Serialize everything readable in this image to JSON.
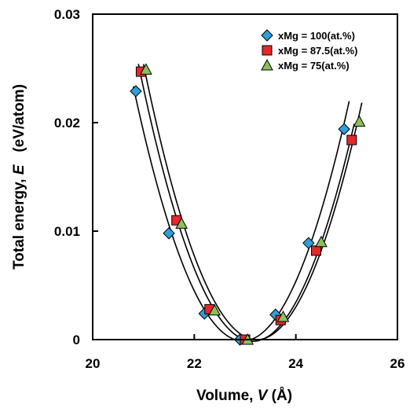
{
  "chart_data": {
    "type": "scatter",
    "xlabel_prefix": "Volume, ",
    "xlabel_var": "V",
    "xlabel_suffix": " (Å)",
    "ylabel_prefix": "Total energy, ",
    "ylabel_var": "E",
    "ylabel_suffix": "   (eV/atom)",
    "xlim": [
      20,
      26
    ],
    "ylim": [
      0,
      0.03
    ],
    "xticks": [
      20,
      22,
      24,
      26
    ],
    "xtick_labels": [
      "20",
      "22",
      "24",
      "26"
    ],
    "yticks": [
      0,
      0.01,
      0.02,
      0.03
    ],
    "ytick_labels": [
      "0",
      "0.01",
      "0.02",
      "0.03"
    ],
    "grid": false,
    "legend_position": "top-right",
    "series": [
      {
        "name": "xMg = 100(at.%)",
        "marker": "diamond",
        "color": "#2e9fd9",
        "points": [
          [
            20.85,
            0.0229
          ],
          [
            21.5,
            0.0098
          ],
          [
            22.2,
            0.0024
          ],
          [
            22.9,
            0.0
          ],
          [
            23.6,
            0.0023
          ],
          [
            24.25,
            0.0089
          ],
          [
            24.95,
            0.0194
          ]
        ],
        "fit": {
          "a": 0.02178,
          "b": -0.0101,
          "xmin": 20.8,
          "xmax": 25.05
        }
      },
      {
        "name": "xMg = 87.5(at.%)",
        "marker": "square",
        "color": "#e8262b",
        "points": [
          [
            20.95,
            0.0247
          ],
          [
            21.65,
            0.011
          ],
          [
            22.3,
            0.0028
          ],
          [
            23.0,
            0.0
          ],
          [
            23.7,
            0.0018
          ],
          [
            24.4,
            0.0082
          ],
          [
            25.1,
            0.0184
          ]
        ],
        "fit": {
          "a": 0.02217,
          "b": -0.0121,
          "xmin": 20.9,
          "xmax": 25.15
        }
      },
      {
        "name": "xMg = 75(at.%)",
        "marker": "triangle",
        "color": "#8cbf5a",
        "points": [
          [
            21.05,
            0.0249
          ],
          [
            21.75,
            0.0107
          ],
          [
            22.4,
            0.0027
          ],
          [
            23.05,
            0.0
          ],
          [
            23.75,
            0.0021
          ],
          [
            24.5,
            0.009
          ],
          [
            25.25,
            0.0201
          ]
        ],
        "fit": {
          "a": 0.02128,
          "b": -0.01,
          "xmin": 21.0,
          "xmax": 25.3
        }
      }
    ]
  }
}
